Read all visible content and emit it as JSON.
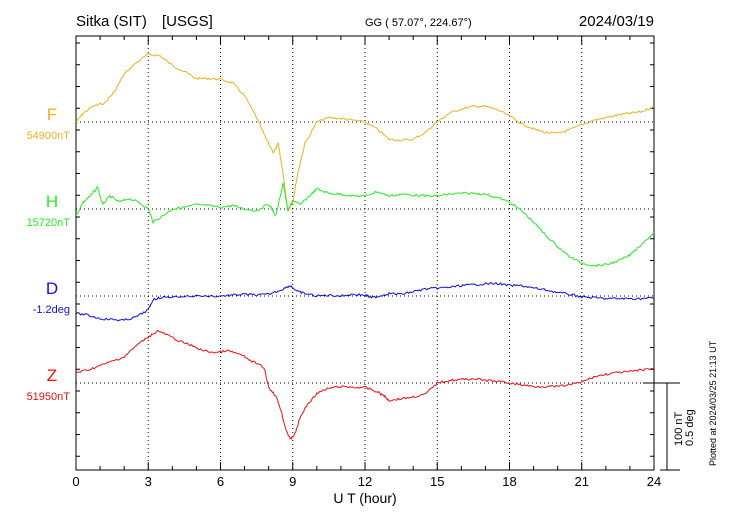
{
  "header": {
    "station": "Sitka (SIT)",
    "agency": "[USGS]",
    "coords": "GG ( 57.07°, 224.67°)",
    "date": "2024/03/19"
  },
  "side_note": "Plotted at 2024/03/25 21:13 UT",
  "scale_bar": {
    "nt": "100 nT",
    "deg": "0.5 deg"
  },
  "colors": {
    "F": "#f0b020",
    "H": "#22ee22",
    "D": "#1010dd",
    "Z": "#ee1111",
    "grid": "#000000"
  },
  "chart_data": {
    "type": "line",
    "xlabel": "U T (hour)",
    "xlim": [
      0,
      24
    ],
    "x_ticks": [
      "0",
      "3",
      "6",
      "9",
      "12",
      "15",
      "18",
      "21",
      "24"
    ],
    "scale_units_per_division": {
      "nT": 100,
      "deg": 0.5
    },
    "series": [
      {
        "key": "F",
        "name": "F",
        "baseline_label": "54900nT",
        "unit": "nT",
        "baseline": 54900,
        "points": [
          [
            0.0,
            54900
          ],
          [
            0.3,
            54910
          ],
          [
            0.7,
            54918
          ],
          [
            1.2,
            54922
          ],
          [
            1.6,
            54935
          ],
          [
            2.0,
            54955
          ],
          [
            2.5,
            54968
          ],
          [
            3.0,
            54978
          ],
          [
            3.5,
            54976
          ],
          [
            4.0,
            54965
          ],
          [
            4.5,
            54958
          ],
          [
            5.0,
            54950
          ],
          [
            5.5,
            54950
          ],
          [
            6.0,
            54949
          ],
          [
            6.5,
            54945
          ],
          [
            7.0,
            54930
          ],
          [
            7.5,
            54905
          ],
          [
            7.9,
            54880
          ],
          [
            8.2,
            54865
          ],
          [
            8.4,
            54875
          ],
          [
            8.6,
            54840
          ],
          [
            8.8,
            54798
          ],
          [
            9.0,
            54808
          ],
          [
            9.2,
            54840
          ],
          [
            9.5,
            54875
          ],
          [
            10.0,
            54900
          ],
          [
            10.5,
            54905
          ],
          [
            11.0,
            54904
          ],
          [
            11.5,
            54902
          ],
          [
            12.0,
            54900
          ],
          [
            12.5,
            54892
          ],
          [
            13.0,
            54880
          ],
          [
            13.5,
            54879
          ],
          [
            14.0,
            54880
          ],
          [
            14.5,
            54888
          ],
          [
            15.0,
            54900
          ],
          [
            15.5,
            54910
          ],
          [
            16.0,
            54915
          ],
          [
            16.5,
            54918
          ],
          [
            17.0,
            54918
          ],
          [
            17.5,
            54914
          ],
          [
            18.0,
            54907
          ],
          [
            18.5,
            54898
          ],
          [
            19.0,
            54892
          ],
          [
            19.5,
            54888
          ],
          [
            20.0,
            54887
          ],
          [
            20.5,
            54891
          ],
          [
            21.0,
            54897
          ],
          [
            21.5,
            54902
          ],
          [
            22.0,
            54905
          ],
          [
            22.5,
            54908
          ],
          [
            23.0,
            54910
          ],
          [
            23.5,
            54912
          ],
          [
            24.0,
            54918
          ]
        ]
      },
      {
        "key": "H",
        "name": "H",
        "baseline_label": "15720nT",
        "unit": "nT",
        "baseline": 15720,
        "points": [
          [
            0.0,
            15712
          ],
          [
            0.3,
            15728
          ],
          [
            0.6,
            15735
          ],
          [
            0.9,
            15745
          ],
          [
            1.1,
            15725
          ],
          [
            1.4,
            15735
          ],
          [
            1.8,
            15728
          ],
          [
            2.2,
            15732
          ],
          [
            2.6,
            15728
          ],
          [
            3.0,
            15720
          ],
          [
            3.2,
            15705
          ],
          [
            3.6,
            15712
          ],
          [
            4.0,
            15720
          ],
          [
            4.5,
            15722
          ],
          [
            5.0,
            15725
          ],
          [
            5.5,
            15724
          ],
          [
            6.0,
            15722
          ],
          [
            6.5,
            15724
          ],
          [
            7.0,
            15720
          ],
          [
            7.5,
            15718
          ],
          [
            8.0,
            15726
          ],
          [
            8.3,
            15712
          ],
          [
            8.6,
            15750
          ],
          [
            8.8,
            15718
          ],
          [
            9.0,
            15730
          ],
          [
            9.3,
            15725
          ],
          [
            9.7,
            15735
          ],
          [
            10.0,
            15743
          ],
          [
            10.5,
            15738
          ],
          [
            11.0,
            15737
          ],
          [
            11.5,
            15735
          ],
          [
            12.0,
            15735
          ],
          [
            12.5,
            15740
          ],
          [
            13.0,
            15735
          ],
          [
            13.5,
            15737
          ],
          [
            14.0,
            15736
          ],
          [
            14.5,
            15735
          ],
          [
            15.0,
            15735
          ],
          [
            15.5,
            15737
          ],
          [
            16.0,
            15738
          ],
          [
            16.5,
            15738
          ],
          [
            17.0,
            15737
          ],
          [
            17.5,
            15733
          ],
          [
            18.0,
            15728
          ],
          [
            18.5,
            15718
          ],
          [
            19.0,
            15705
          ],
          [
            19.5,
            15690
          ],
          [
            20.0,
            15677
          ],
          [
            20.5,
            15665
          ],
          [
            21.0,
            15658
          ],
          [
            21.5,
            15655
          ],
          [
            22.0,
            15656
          ],
          [
            22.5,
            15660
          ],
          [
            23.0,
            15667
          ],
          [
            23.5,
            15680
          ],
          [
            24.0,
            15693
          ]
        ]
      },
      {
        "key": "D",
        "name": "D",
        "baseline_label": "-1.2deg",
        "unit": "deg",
        "baseline": -1.2,
        "points": [
          [
            0.0,
            -1.3
          ],
          [
            0.5,
            -1.31
          ],
          [
            1.0,
            -1.33
          ],
          [
            1.5,
            -1.335
          ],
          [
            2.0,
            -1.34
          ],
          [
            2.5,
            -1.32
          ],
          [
            3.0,
            -1.28
          ],
          [
            3.2,
            -1.22
          ],
          [
            3.5,
            -1.21
          ],
          [
            4.0,
            -1.205
          ],
          [
            5.0,
            -1.2
          ],
          [
            6.0,
            -1.2
          ],
          [
            6.5,
            -1.195
          ],
          [
            7.0,
            -1.19
          ],
          [
            7.5,
            -1.195
          ],
          [
            8.0,
            -1.19
          ],
          [
            8.5,
            -1.165
          ],
          [
            8.9,
            -1.14
          ],
          [
            9.2,
            -1.175
          ],
          [
            9.5,
            -1.185
          ],
          [
            10.0,
            -1.2
          ],
          [
            10.5,
            -1.195
          ],
          [
            11.0,
            -1.2
          ],
          [
            11.5,
            -1.19
          ],
          [
            12.0,
            -1.195
          ],
          [
            12.3,
            -1.21
          ],
          [
            12.6,
            -1.2
          ],
          [
            13.0,
            -1.185
          ],
          [
            13.5,
            -1.19
          ],
          [
            14.0,
            -1.175
          ],
          [
            14.5,
            -1.16
          ],
          [
            15.0,
            -1.155
          ],
          [
            15.5,
            -1.15
          ],
          [
            16.0,
            -1.14
          ],
          [
            16.5,
            -1.135
          ],
          [
            17.0,
            -1.13
          ],
          [
            17.5,
            -1.128
          ],
          [
            18.0,
            -1.14
          ],
          [
            18.5,
            -1.14
          ],
          [
            19.0,
            -1.155
          ],
          [
            19.5,
            -1.165
          ],
          [
            20.0,
            -1.18
          ],
          [
            20.5,
            -1.19
          ],
          [
            21.0,
            -1.205
          ],
          [
            21.5,
            -1.21
          ],
          [
            22.0,
            -1.215
          ],
          [
            22.5,
            -1.215
          ],
          [
            23.0,
            -1.215
          ],
          [
            23.5,
            -1.215
          ],
          [
            24.0,
            -1.21
          ]
        ]
      },
      {
        "key": "Z",
        "name": "Z",
        "baseline_label": "51950nT",
        "unit": "nT",
        "baseline": 51950,
        "points": [
          [
            0.0,
            51962
          ],
          [
            0.5,
            51965
          ],
          [
            1.0,
            51970
          ],
          [
            1.5,
            51975
          ],
          [
            2.0,
            51980
          ],
          [
            2.5,
            51993
          ],
          [
            3.0,
            52003
          ],
          [
            3.4,
            52010
          ],
          [
            3.8,
            52005
          ],
          [
            4.3,
            51998
          ],
          [
            4.8,
            51993
          ],
          [
            5.3,
            51987
          ],
          [
            5.8,
            51985
          ],
          [
            6.3,
            51987
          ],
          [
            6.8,
            51983
          ],
          [
            7.3,
            51975
          ],
          [
            7.8,
            51968
          ],
          [
            8.0,
            51945
          ],
          [
            8.3,
            51935
          ],
          [
            8.5,
            51920
          ],
          [
            8.7,
            51898
          ],
          [
            8.9,
            51885
          ],
          [
            9.1,
            51892
          ],
          [
            9.3,
            51910
          ],
          [
            9.6,
            51925
          ],
          [
            10.0,
            51938
          ],
          [
            10.5,
            51944
          ],
          [
            11.0,
            51946
          ],
          [
            11.5,
            51945
          ],
          [
            12.0,
            51945
          ],
          [
            12.5,
            51940
          ],
          [
            12.8,
            51935
          ],
          [
            13.0,
            51930
          ],
          [
            13.5,
            51932
          ],
          [
            14.0,
            51934
          ],
          [
            14.5,
            51937
          ],
          [
            15.0,
            51950
          ],
          [
            15.5,
            51953
          ],
          [
            16.0,
            51954
          ],
          [
            16.5,
            51955
          ],
          [
            17.0,
            51953
          ],
          [
            17.5,
            51952
          ],
          [
            18.0,
            51950
          ],
          [
            18.5,
            51948
          ],
          [
            19.0,
            51946
          ],
          [
            19.5,
            51946
          ],
          [
            20.0,
            51946
          ],
          [
            20.5,
            51948
          ],
          [
            21.0,
            51951
          ],
          [
            21.5,
            51957
          ],
          [
            22.0,
            51960
          ],
          [
            22.5,
            51962
          ],
          [
            23.0,
            51963
          ],
          [
            23.5,
            51965
          ],
          [
            24.0,
            51967
          ]
        ]
      }
    ]
  }
}
